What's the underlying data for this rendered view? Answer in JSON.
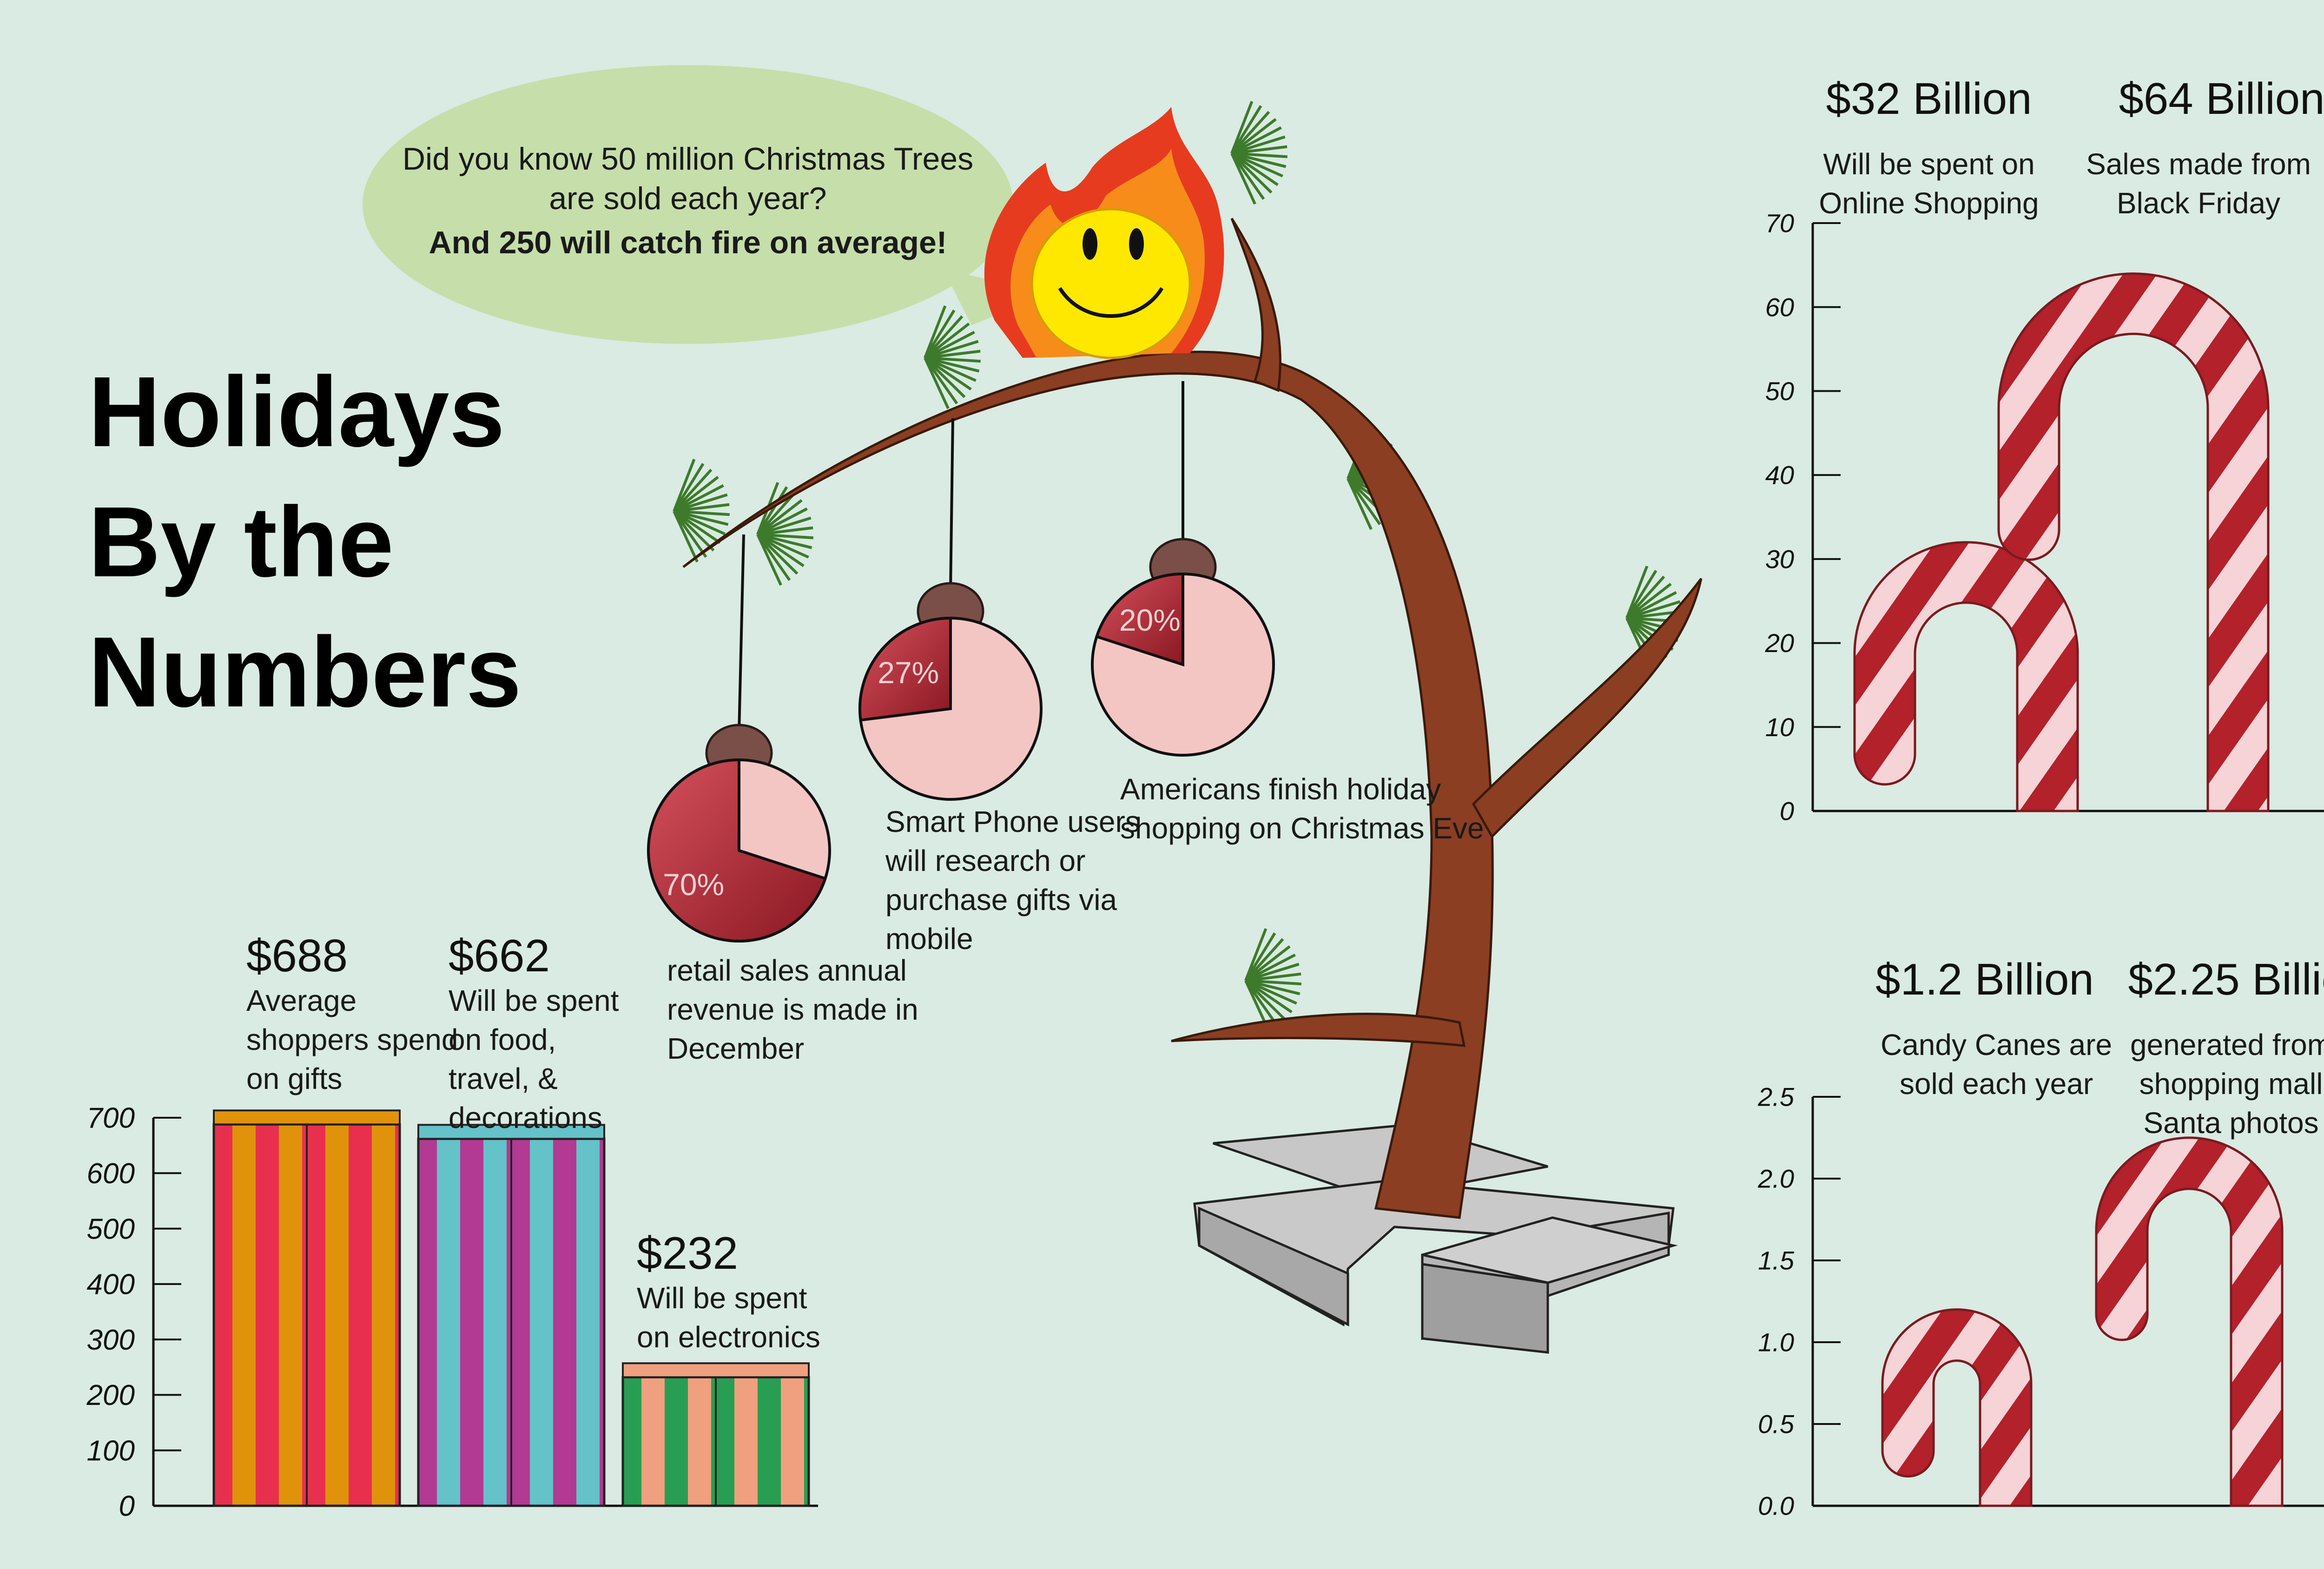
{
  "title": {
    "line1": "Holidays",
    "line2": "By the",
    "line3": "Numbers"
  },
  "speech": {
    "line1": "Did you know 50 million Christmas Trees",
    "line2": "are sold each year?",
    "line3": "And 250 will catch fire on average!"
  },
  "ornaments": [
    {
      "pct": 70,
      "label": "70%",
      "text": [
        "retail sales annual",
        "revenue is made in",
        "December"
      ]
    },
    {
      "pct": 27,
      "label": "27%",
      "text": [
        "Smart Phone users",
        "will research or",
        "purchase gifts via",
        "mobile"
      ]
    },
    {
      "pct": 20,
      "label": "20%",
      "text": [
        "Americans finish holiday",
        "shopping on Christmas Eve"
      ]
    }
  ],
  "colors": {
    "background": "#d9ebe2",
    "cane_red": "#b3212b",
    "cane_white": "#f5d3d6",
    "ornament_dark": "#9d1c28",
    "ornament_light": "#f3c6c4",
    "trunk": "#8b3e22",
    "needles": "#3d7a2c",
    "flame_outer": "#e63b1f",
    "flame_mid": "#f78c1b",
    "flame_inner": "#ffe800",
    "speech_bubble": "#c6deaa",
    "stand": "#c7c7c7"
  },
  "chart_data": [
    {
      "type": "bar",
      "style": "gift boxes",
      "categories": [
        "$688",
        "$662",
        "$232"
      ],
      "values": [
        688,
        662,
        232
      ],
      "value_labels": [
        "$688",
        "$662",
        "$232"
      ],
      "descriptions": [
        [
          "Average",
          "shoppers spend",
          "on gifts"
        ],
        [
          "Will be spent",
          "on food,",
          "travel, &",
          "decorations"
        ],
        [
          "Will be spent",
          "on electronics"
        ]
      ],
      "ylim": [
        0,
        700
      ],
      "yticks": [
        "0",
        "100",
        "200",
        "300",
        "400",
        "500",
        "600",
        "700"
      ],
      "box_colors": [
        [
          "#e8304e",
          "#e0930a"
        ],
        [
          "#b23a93",
          "#64c2c9"
        ],
        [
          "#279e52",
          "#f0a07e"
        ]
      ],
      "grid": false
    },
    {
      "type": "bar",
      "style": "candy canes",
      "categories": [
        "$32 Billion",
        "$64 Billion"
      ],
      "values": [
        32,
        64
      ],
      "value_labels": [
        "$32 Billion",
        "$64 Billion"
      ],
      "descriptions": [
        [
          "Will be spent on",
          "Online Shopping"
        ],
        [
          "Sales made from",
          "Black Friday"
        ]
      ],
      "ylim": [
        0,
        70
      ],
      "yticks": [
        "0",
        "10",
        "20",
        "30",
        "40",
        "50",
        "60",
        "70"
      ],
      "grid": false
    },
    {
      "type": "bar",
      "style": "candy canes",
      "categories": [
        "$1.2 Billion",
        "$2.25 Billion"
      ],
      "values": [
        1.2,
        2.25
      ],
      "value_labels": [
        "$1.2 Billion",
        "$2.25 Billion"
      ],
      "descriptions": [
        [
          "Candy Canes are",
          "sold each year"
        ],
        [
          "generated from",
          "shopping mall",
          "Santa photos"
        ]
      ],
      "ylim": [
        0,
        2.5
      ],
      "yticks": [
        "0.0",
        "0.5",
        "1.0",
        "1.5",
        "2.0",
        "2.5"
      ],
      "grid": false
    }
  ]
}
